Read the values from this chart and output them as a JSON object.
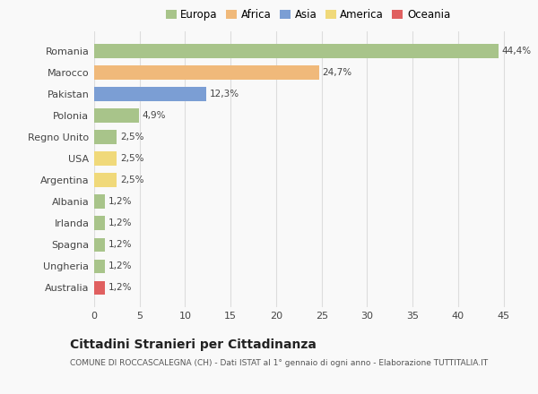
{
  "categories": [
    "Romania",
    "Marocco",
    "Pakistan",
    "Polonia",
    "Regno Unito",
    "USA",
    "Argentina",
    "Albania",
    "Irlanda",
    "Spagna",
    "Ungheria",
    "Australia"
  ],
  "values": [
    44.4,
    24.7,
    12.3,
    4.9,
    2.5,
    2.5,
    2.5,
    1.2,
    1.2,
    1.2,
    1.2,
    1.2
  ],
  "labels": [
    "44,4%",
    "24,7%",
    "12,3%",
    "4,9%",
    "2,5%",
    "2,5%",
    "2,5%",
    "1,2%",
    "1,2%",
    "1,2%",
    "1,2%",
    "1,2%"
  ],
  "bar_colors": [
    "#a8c48a",
    "#f0b97a",
    "#7b9ed4",
    "#a8c48a",
    "#a8c48a",
    "#f0d97a",
    "#f0d97a",
    "#a8c48a",
    "#a8c48a",
    "#a8c48a",
    "#a8c48a",
    "#e06060"
  ],
  "legend_labels": [
    "Europa",
    "Africa",
    "Asia",
    "America",
    "Oceania"
  ],
  "legend_colors": [
    "#a8c48a",
    "#f0b97a",
    "#7b9ed4",
    "#f0d97a",
    "#e06060"
  ],
  "title": "Cittadini Stranieri per Cittadinanza",
  "subtitle": "COMUNE DI ROCCASCALEGNA (CH) - Dati ISTAT al 1° gennaio di ogni anno - Elaborazione TUTTITALIA.IT",
  "xlim": [
    0,
    47
  ],
  "xticks": [
    0,
    5,
    10,
    15,
    20,
    25,
    30,
    35,
    40,
    45
  ],
  "background_color": "#f9f9f9",
  "grid_color": "#dddddd",
  "bar_height": 0.65
}
